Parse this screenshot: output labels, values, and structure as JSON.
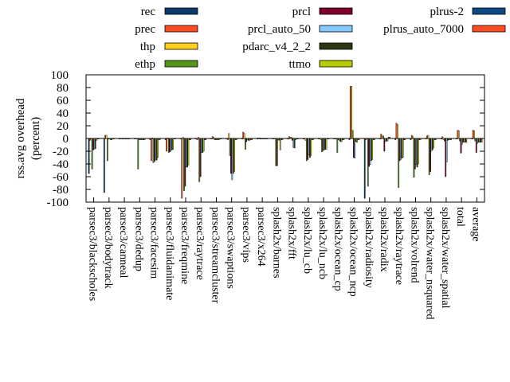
{
  "chart_data": {
    "type": "bar",
    "ylabel": "rss.avg overhead",
    "ylabel2": "(percent)",
    "ylim": [
      -100,
      100
    ],
    "yticks": [
      -100,
      -80,
      -60,
      -40,
      -20,
      0,
      20,
      40,
      60,
      80,
      100
    ],
    "grid": false,
    "legend_position": "top",
    "categories": [
      "parsec3/blackscholes",
      "parsec3/bodytrack",
      "parsec3/canneal",
      "parsec3/dedup",
      "parsec3/facesim",
      "parsec3/fluidanimate",
      "parsec3/freqmine",
      "parsec3/raytrace",
      "parsec3/streamcluster",
      "parsec3/swaptions",
      "parsec3/vips",
      "parsec3/x264",
      "splash2x/barnes",
      "splash2x/fft",
      "splash2x/lu_cb",
      "splash2x/lu_ncb",
      "splash2x/ocean_cp",
      "splash2x/ocean_ncp",
      "splash2x/radiosity",
      "splash2x/radix",
      "splash2x/raytrace",
      "splash2x/volrend",
      "splash2x/water_nsquared",
      "splash2x/water_spatial",
      "total",
      "average"
    ],
    "series": [
      {
        "name": "rec",
        "color": "#0a3a6a",
        "values": [
          -55,
          -85,
          -1,
          -1,
          -2,
          -2,
          -1,
          -1,
          -1,
          -1,
          -1,
          0,
          -1,
          -1,
          -1,
          -1,
          -1,
          -2,
          -94,
          -1,
          -2,
          -2,
          -1,
          -1,
          -1,
          -1
        ]
      },
      {
        "name": "prec",
        "color": "#ff4b22",
        "values": [
          -3,
          5,
          -1,
          -1,
          -35,
          -20,
          -94,
          -2,
          3,
          -2,
          10,
          1,
          0,
          3,
          0,
          0,
          0,
          82,
          -2,
          7,
          24,
          5,
          4,
          3,
          13,
          13
        ]
      },
      {
        "name": "thp",
        "color": "#ffd020",
        "values": [
          0,
          5,
          0,
          -1,
          1,
          1,
          2,
          2,
          2,
          8,
          8,
          1,
          0,
          2,
          -3,
          -2,
          0,
          82,
          0,
          4,
          22,
          3,
          5,
          -2,
          12,
          12
        ]
      },
      {
        "name": "ethp",
        "color": "#55951c",
        "values": [
          -48,
          -35,
          -1,
          -48,
          -38,
          -22,
          -82,
          -68,
          -2,
          -27,
          -17,
          0,
          -43,
          2,
          -35,
          -21,
          -22,
          13,
          -75,
          4,
          -77,
          -61,
          -57,
          -4,
          -4,
          -4
        ]
      },
      {
        "name": "prcl",
        "color": "#80002a",
        "values": [
          -18,
          -1,
          -1,
          -2,
          -36,
          -21,
          -75,
          -60,
          -2,
          -55,
          -5,
          0,
          -43,
          -3,
          -33,
          -19,
          -2,
          -30,
          -44,
          -20,
          -35,
          -48,
          -52,
          -60,
          -23,
          -22
        ]
      },
      {
        "name": "prcl_auto_50",
        "color": "#86c9ff",
        "values": [
          -17,
          -1,
          -1,
          -2,
          -33,
          -19,
          -45,
          -22,
          -2,
          -65,
          -2,
          0,
          -2,
          -14,
          -26,
          -18,
          -3,
          -31,
          -41,
          -5,
          -33,
          -41,
          -20,
          -37,
          -9,
          -8
        ]
      },
      {
        "name": "pdarc_v4_2_2",
        "color": "#2c3811",
        "values": [
          -16,
          -2,
          -1,
          -2,
          -34,
          -18,
          -45,
          -22,
          -2,
          -55,
          -3,
          0,
          -3,
          -15,
          -30,
          -17,
          -5,
          -5,
          -35,
          -4,
          -31,
          -45,
          -18,
          -3,
          -6,
          -6
        ]
      },
      {
        "name": "ttmo",
        "color": "#b6cc00",
        "values": [
          -3,
          -2,
          -1,
          -2,
          -30,
          -17,
          -42,
          -20,
          -2,
          -52,
          -3,
          0,
          -18,
          -2,
          -27,
          -17,
          -5,
          -6,
          -33,
          -4,
          -30,
          -40,
          -15,
          -2,
          -6,
          -6
        ]
      },
      {
        "name": "plrus-2",
        "color": "#0c4a86",
        "values": [
          -1,
          -1,
          -1,
          -2,
          -2,
          -1,
          -2,
          -2,
          -1,
          -2,
          -2,
          0,
          -2,
          -1,
          -2,
          -1,
          -2,
          -2,
          -2,
          2,
          -2,
          -2,
          -2,
          -2,
          -6,
          -6
        ]
      },
      {
        "name": "plrus_auto_7000",
        "color": "#ff4b22",
        "values": [
          -1,
          -1,
          -1,
          -2,
          -2,
          -1,
          -2,
          -2,
          -1,
          -2,
          -2,
          0,
          -2,
          -1,
          -2,
          -1,
          -2,
          -2,
          -2,
          2,
          -2,
          -2,
          -2,
          -2,
          -6,
          -6
        ]
      }
    ]
  }
}
